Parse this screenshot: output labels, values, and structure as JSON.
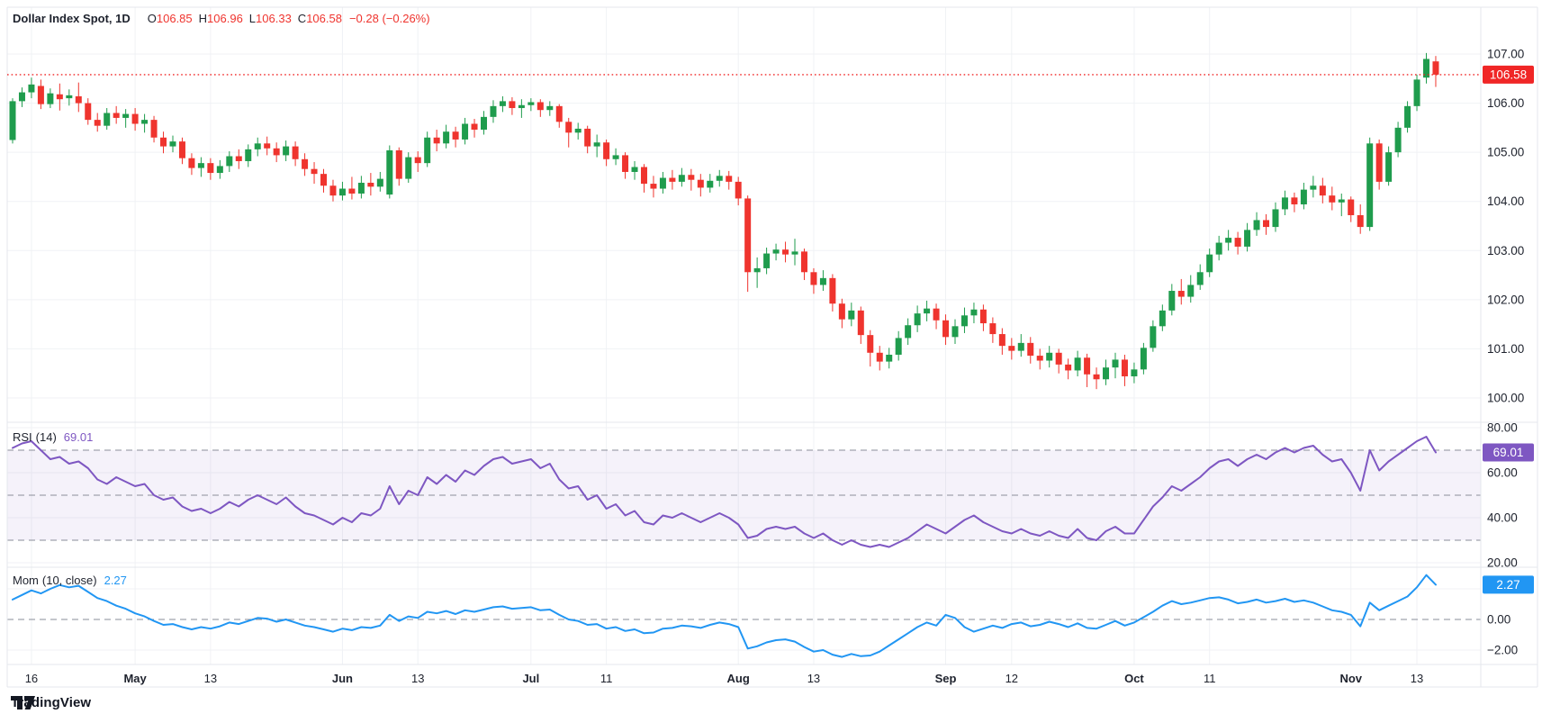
{
  "header": {
    "symbol_interval": "Dollar Index Spot, 1D",
    "o_label": "O",
    "o": "106.85",
    "h_label": "H",
    "h": "106.96",
    "l_label": "L",
    "l": "106.33",
    "c_label": "C",
    "c": "106.58",
    "change": "−0.28 (−0.26%)"
  },
  "rsi_pane": {
    "name": "RSI",
    "params": "(14)",
    "value": "69.01"
  },
  "mom_pane": {
    "name": "Mom",
    "params": "(10, close)",
    "value": "2.27"
  },
  "footer": {
    "brand": "TradingView"
  },
  "colors": {
    "up": "#1f9c4d",
    "down": "#ef342e",
    "last_badge": "#f02626",
    "rsi_line": "#7e57c2",
    "rsi_badge": "#7e57c2",
    "rsi_band": "rgba(126,87,194,0.08)",
    "mom_line": "#2196f3",
    "mom_badge": "#2196f3",
    "grid": "#f0f2f5",
    "separator": "#e4e7ec",
    "dashed": "#8a8e99",
    "axis_text": "#1e222d"
  },
  "chart_data": {
    "type": "candlestick",
    "symbol": "Dollar Index Spot",
    "interval": "1D",
    "last_price": 106.58,
    "last_price_label": "106.58",
    "price_axis_labels": [
      107,
      106,
      105,
      104,
      103,
      102,
      101,
      100
    ],
    "x_ticks": [
      {
        "i": 2,
        "label": "16",
        "bold": false
      },
      {
        "i": 13,
        "label": "May",
        "bold": true
      },
      {
        "i": 21,
        "label": "13",
        "bold": false
      },
      {
        "i": 35,
        "label": "Jun",
        "bold": true
      },
      {
        "i": 43,
        "label": "13",
        "bold": false
      },
      {
        "i": 55,
        "label": "Jul",
        "bold": true
      },
      {
        "i": 63,
        "label": "11",
        "bold": false
      },
      {
        "i": 77,
        "label": "Aug",
        "bold": true
      },
      {
        "i": 85,
        "label": "13",
        "bold": false
      },
      {
        "i": 99,
        "label": "Sep",
        "bold": true
      },
      {
        "i": 106,
        "label": "12",
        "bold": false
      },
      {
        "i": 119,
        "label": "Oct",
        "bold": true
      },
      {
        "i": 127,
        "label": "11",
        "bold": false
      },
      {
        "i": 142,
        "label": "Nov",
        "bold": true
      },
      {
        "i": 149,
        "label": "13",
        "bold": false
      }
    ],
    "candles": [
      [
        105.25,
        106.1,
        105.18,
        106.04
      ],
      [
        106.04,
        106.32,
        105.92,
        106.22
      ],
      [
        106.22,
        106.52,
        106.1,
        106.38
      ],
      [
        106.35,
        106.48,
        105.88,
        105.98
      ],
      [
        105.98,
        106.3,
        105.9,
        106.2
      ],
      [
        106.18,
        106.4,
        105.85,
        106.08
      ],
      [
        106.1,
        106.28,
        105.95,
        106.16
      ],
      [
        106.14,
        106.42,
        105.82,
        106.0
      ],
      [
        106.0,
        106.1,
        105.56,
        105.66
      ],
      [
        105.66,
        105.8,
        105.42,
        105.54
      ],
      [
        105.54,
        105.9,
        105.46,
        105.8
      ],
      [
        105.8,
        105.94,
        105.58,
        105.7
      ],
      [
        105.7,
        105.88,
        105.5,
        105.78
      ],
      [
        105.78,
        105.9,
        105.44,
        105.58
      ],
      [
        105.58,
        105.78,
        105.4,
        105.66
      ],
      [
        105.66,
        105.74,
        105.2,
        105.3
      ],
      [
        105.3,
        105.42,
        104.98,
        105.12
      ],
      [
        105.12,
        105.34,
        105.0,
        105.22
      ],
      [
        105.22,
        105.3,
        104.76,
        104.88
      ],
      [
        104.88,
        104.98,
        104.54,
        104.68
      ],
      [
        104.68,
        104.9,
        104.5,
        104.78
      ],
      [
        104.78,
        104.88,
        104.44,
        104.58
      ],
      [
        104.58,
        104.84,
        104.46,
        104.72
      ],
      [
        104.72,
        105.02,
        104.6,
        104.92
      ],
      [
        104.92,
        105.06,
        104.66,
        104.82
      ],
      [
        104.82,
        105.16,
        104.7,
        105.06
      ],
      [
        105.06,
        105.3,
        104.92,
        105.18
      ],
      [
        105.18,
        105.32,
        104.94,
        105.08
      ],
      [
        105.08,
        105.2,
        104.8,
        104.94
      ],
      [
        104.94,
        105.24,
        104.82,
        105.12
      ],
      [
        105.12,
        105.22,
        104.72,
        104.86
      ],
      [
        104.86,
        104.98,
        104.52,
        104.66
      ],
      [
        104.66,
        104.8,
        104.36,
        104.56
      ],
      [
        104.56,
        104.66,
        104.18,
        104.32
      ],
      [
        104.32,
        104.44,
        104.0,
        104.12
      ],
      [
        104.12,
        104.4,
        104.02,
        104.26
      ],
      [
        104.26,
        104.5,
        104.04,
        104.16
      ],
      [
        104.16,
        104.52,
        104.06,
        104.38
      ],
      [
        104.38,
        104.58,
        104.12,
        104.3
      ],
      [
        104.3,
        104.6,
        104.2,
        104.46
      ],
      [
        104.14,
        105.14,
        104.06,
        105.04
      ],
      [
        105.04,
        105.1,
        104.32,
        104.46
      ],
      [
        104.46,
        105.0,
        104.38,
        104.9
      ],
      [
        104.9,
        105.02,
        104.6,
        104.78
      ],
      [
        104.78,
        105.42,
        104.7,
        105.3
      ],
      [
        105.3,
        105.46,
        105.02,
        105.18
      ],
      [
        105.18,
        105.56,
        105.08,
        105.42
      ],
      [
        105.42,
        105.52,
        105.1,
        105.26
      ],
      [
        105.26,
        105.7,
        105.16,
        105.58
      ],
      [
        105.58,
        105.68,
        105.3,
        105.46
      ],
      [
        105.46,
        105.84,
        105.36,
        105.72
      ],
      [
        105.72,
        106.06,
        105.6,
        105.94
      ],
      [
        105.94,
        106.14,
        105.82,
        106.04
      ],
      [
        106.04,
        106.12,
        105.76,
        105.9
      ],
      [
        105.9,
        106.08,
        105.7,
        105.96
      ],
      [
        105.96,
        106.1,
        105.84,
        106.02
      ],
      [
        106.02,
        106.08,
        105.72,
        105.86
      ],
      [
        105.86,
        106.04,
        105.74,
        105.94
      ],
      [
        105.94,
        105.98,
        105.5,
        105.62
      ],
      [
        105.62,
        105.7,
        105.1,
        105.4
      ],
      [
        105.4,
        105.6,
        105.26,
        105.48
      ],
      [
        105.48,
        105.54,
        104.98,
        105.12
      ],
      [
        105.12,
        105.36,
        104.9,
        105.2
      ],
      [
        105.2,
        105.26,
        104.72,
        104.86
      ],
      [
        104.86,
        105.08,
        104.74,
        104.94
      ],
      [
        104.94,
        105.0,
        104.46,
        104.6
      ],
      [
        104.6,
        104.82,
        104.44,
        104.7
      ],
      [
        104.7,
        104.76,
        104.18,
        104.36
      ],
      [
        104.36,
        104.52,
        104.08,
        104.26
      ],
      [
        104.26,
        104.6,
        104.16,
        104.48
      ],
      [
        104.48,
        104.64,
        104.24,
        104.4
      ],
      [
        104.4,
        104.68,
        104.3,
        104.54
      ],
      [
        104.54,
        104.66,
        104.22,
        104.44
      ],
      [
        104.44,
        104.56,
        104.1,
        104.28
      ],
      [
        104.28,
        104.56,
        104.18,
        104.42
      ],
      [
        104.42,
        104.64,
        104.3,
        104.52
      ],
      [
        104.52,
        104.62,
        104.24,
        104.4
      ],
      [
        104.4,
        104.5,
        103.92,
        104.06
      ],
      [
        104.06,
        104.12,
        102.16,
        102.56
      ],
      [
        102.56,
        102.86,
        102.24,
        102.64
      ],
      [
        102.64,
        103.06,
        102.52,
        102.94
      ],
      [
        102.94,
        103.14,
        102.8,
        103.02
      ],
      [
        103.02,
        103.18,
        102.76,
        102.92
      ],
      [
        102.92,
        103.24,
        102.7,
        102.98
      ],
      [
        102.98,
        103.04,
        102.4,
        102.56
      ],
      [
        102.56,
        102.64,
        102.12,
        102.3
      ],
      [
        102.3,
        102.6,
        102.18,
        102.44
      ],
      [
        102.44,
        102.52,
        101.76,
        101.92
      ],
      [
        101.92,
        102.02,
        101.42,
        101.6
      ],
      [
        101.6,
        101.94,
        101.46,
        101.78
      ],
      [
        101.78,
        101.86,
        101.1,
        101.28
      ],
      [
        101.28,
        101.38,
        100.64,
        100.92
      ],
      [
        100.92,
        101.06,
        100.56,
        100.74
      ],
      [
        100.74,
        101.02,
        100.6,
        100.88
      ],
      [
        100.88,
        101.36,
        100.76,
        101.22
      ],
      [
        101.22,
        101.62,
        101.08,
        101.48
      ],
      [
        101.48,
        101.88,
        101.34,
        101.72
      ],
      [
        101.72,
        101.98,
        101.56,
        101.82
      ],
      [
        101.82,
        101.92,
        101.4,
        101.58
      ],
      [
        101.58,
        101.7,
        101.08,
        101.24
      ],
      [
        101.24,
        101.6,
        101.1,
        101.46
      ],
      [
        101.46,
        101.84,
        101.32,
        101.68
      ],
      [
        101.68,
        101.94,
        101.52,
        101.8
      ],
      [
        101.8,
        101.9,
        101.36,
        101.52
      ],
      [
        101.52,
        101.64,
        101.12,
        101.3
      ],
      [
        101.3,
        101.42,
        100.88,
        101.06
      ],
      [
        101.06,
        101.22,
        100.78,
        100.96
      ],
      [
        100.96,
        101.3,
        100.84,
        101.12
      ],
      [
        101.12,
        101.24,
        100.7,
        100.86
      ],
      [
        100.86,
        101.0,
        100.58,
        100.76
      ],
      [
        100.76,
        101.06,
        100.62,
        100.92
      ],
      [
        100.92,
        101.0,
        100.5,
        100.68
      ],
      [
        100.68,
        100.8,
        100.38,
        100.56
      ],
      [
        100.56,
        100.96,
        100.44,
        100.82
      ],
      [
        100.82,
        100.9,
        100.22,
        100.48
      ],
      [
        100.48,
        100.62,
        100.18,
        100.38
      ],
      [
        100.38,
        100.78,
        100.26,
        100.62
      ],
      [
        100.62,
        100.92,
        100.4,
        100.78
      ],
      [
        100.78,
        100.88,
        100.24,
        100.44
      ],
      [
        100.44,
        100.72,
        100.3,
        100.58
      ],
      [
        100.58,
        101.12,
        100.48,
        101.02
      ],
      [
        101.02,
        101.58,
        100.94,
        101.46
      ],
      [
        101.46,
        101.9,
        101.36,
        101.78
      ],
      [
        101.78,
        102.32,
        101.68,
        102.18
      ],
      [
        102.18,
        102.42,
        101.9,
        102.06
      ],
      [
        102.06,
        102.5,
        101.94,
        102.3
      ],
      [
        102.3,
        102.72,
        102.2,
        102.56
      ],
      [
        102.56,
        103.04,
        102.46,
        102.92
      ],
      [
        102.92,
        103.3,
        102.8,
        103.16
      ],
      [
        103.16,
        103.42,
        103.0,
        103.26
      ],
      [
        103.26,
        103.38,
        102.92,
        103.08
      ],
      [
        103.08,
        103.56,
        102.98,
        103.42
      ],
      [
        103.42,
        103.78,
        103.3,
        103.62
      ],
      [
        103.62,
        103.74,
        103.32,
        103.48
      ],
      [
        103.48,
        103.98,
        103.38,
        103.84
      ],
      [
        103.84,
        104.22,
        103.72,
        104.08
      ],
      [
        104.08,
        104.18,
        103.78,
        103.94
      ],
      [
        103.94,
        104.38,
        103.84,
        104.24
      ],
      [
        104.24,
        104.52,
        104.08,
        104.32
      ],
      [
        104.32,
        104.48,
        103.96,
        104.12
      ],
      [
        104.12,
        104.3,
        103.82,
        103.98
      ],
      [
        103.98,
        104.16,
        103.7,
        104.04
      ],
      [
        104.04,
        104.1,
        103.58,
        103.72
      ],
      [
        103.72,
        103.94,
        103.34,
        103.48
      ],
      [
        103.48,
        105.3,
        103.4,
        105.18
      ],
      [
        105.18,
        105.26,
        104.24,
        104.4
      ],
      [
        104.4,
        105.12,
        104.32,
        105.0
      ],
      [
        105.0,
        105.62,
        104.9,
        105.5
      ],
      [
        105.5,
        106.04,
        105.4,
        105.94
      ],
      [
        105.94,
        106.58,
        105.84,
        106.48
      ],
      [
        106.52,
        107.02,
        106.4,
        106.9
      ],
      [
        106.85,
        106.96,
        106.33,
        106.58
      ]
    ],
    "indicators": {
      "rsi": {
        "label": "RSI (14)",
        "last": 69.01,
        "last_label": "69.01",
        "axis_labels": [
          80,
          60,
          40,
          20
        ],
        "dashed_levels": [
          70,
          50,
          30
        ],
        "band": [
          30,
          70
        ],
        "values": [
          71,
          73,
          74,
          70,
          66,
          67,
          64,
          65,
          62,
          57,
          55,
          58,
          56,
          54,
          55,
          50,
          48,
          49,
          45,
          43,
          44,
          42,
          44,
          47,
          45,
          48,
          50,
          48,
          46,
          49,
          45,
          42,
          41,
          39,
          37,
          40,
          38,
          42,
          41,
          44,
          54,
          46,
          52,
          50,
          58,
          55,
          59,
          56,
          61,
          59,
          63,
          66,
          67,
          64,
          65,
          66,
          62,
          64,
          57,
          53,
          54,
          48,
          50,
          44,
          46,
          41,
          43,
          38,
          37,
          41,
          40,
          42,
          40,
          38,
          40,
          42,
          40,
          37,
          31,
          32,
          35,
          36,
          35,
          36,
          33,
          31,
          33,
          30,
          28,
          30,
          28,
          27,
          28,
          27,
          29,
          31,
          34,
          37,
          35,
          33,
          36,
          39,
          41,
          38,
          36,
          34,
          33,
          35,
          33,
          32,
          34,
          32,
          31,
          35,
          31,
          30,
          34,
          36,
          33,
          33,
          39,
          45,
          49,
          54,
          52,
          55,
          58,
          62,
          65,
          66,
          63,
          66,
          68,
          66,
          69,
          71,
          69,
          71,
          72,
          68,
          65,
          66,
          60,
          52,
          70,
          61,
          65,
          68,
          71,
          74,
          76,
          69.01
        ]
      },
      "mom": {
        "label": "Mom (10, close)",
        "last": 2.27,
        "last_label": "2.27",
        "axis_labels": [
          0,
          -2
        ],
        "gridlines": [
          2,
          -2
        ],
        "dashed_levels": [
          0
        ],
        "values": [
          1.3,
          1.6,
          1.9,
          1.7,
          2.0,
          2.25,
          2.1,
          2.2,
          1.8,
          1.4,
          1.2,
          0.9,
          0.7,
          0.4,
          0.2,
          -0.1,
          -0.35,
          -0.3,
          -0.5,
          -0.65,
          -0.5,
          -0.6,
          -0.45,
          -0.2,
          -0.3,
          -0.1,
          0.1,
          0.05,
          -0.15,
          0.0,
          -0.2,
          -0.4,
          -0.5,
          -0.65,
          -0.8,
          -0.6,
          -0.7,
          -0.5,
          -0.55,
          -0.4,
          0.3,
          -0.1,
          0.2,
          0.1,
          0.5,
          0.4,
          0.55,
          0.35,
          0.6,
          0.5,
          0.65,
          0.8,
          0.85,
          0.7,
          0.75,
          0.8,
          0.6,
          0.65,
          0.3,
          0.0,
          -0.1,
          -0.35,
          -0.3,
          -0.6,
          -0.5,
          -0.75,
          -0.65,
          -0.9,
          -0.85,
          -0.6,
          -0.55,
          -0.4,
          -0.45,
          -0.55,
          -0.35,
          -0.2,
          -0.3,
          -0.5,
          -1.9,
          -1.75,
          -1.5,
          -1.35,
          -1.3,
          -1.45,
          -1.8,
          -2.1,
          -2.0,
          -2.3,
          -2.45,
          -2.25,
          -2.4,
          -2.35,
          -2.1,
          -1.7,
          -1.3,
          -0.9,
          -0.5,
          -0.2,
          -0.4,
          0.3,
          0.1,
          -0.5,
          -0.8,
          -0.6,
          -0.4,
          -0.55,
          -0.3,
          -0.2,
          -0.45,
          -0.35,
          -0.15,
          -0.3,
          -0.5,
          -0.25,
          -0.55,
          -0.6,
          -0.35,
          -0.1,
          -0.4,
          -0.2,
          0.15,
          0.5,
          0.9,
          1.2,
          1.0,
          1.1,
          1.25,
          1.4,
          1.45,
          1.3,
          1.05,
          1.15,
          1.3,
          1.1,
          1.2,
          1.35,
          1.15,
          1.25,
          1.1,
          0.85,
          0.6,
          0.5,
          0.3,
          -0.45,
          1.1,
          0.6,
          0.9,
          1.2,
          1.5,
          2.1,
          2.9,
          2.27
        ]
      }
    }
  }
}
